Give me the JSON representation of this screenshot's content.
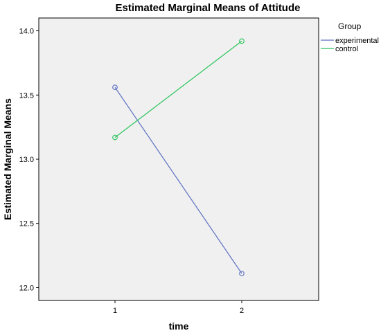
{
  "chart_data": {
    "type": "line",
    "title": "Estimated Marginal Means of Attitude",
    "xlabel": "time",
    "ylabel": "Estimated Marginal Means",
    "categories": [
      "1",
      "2"
    ],
    "ylim": [
      11.9,
      14.1
    ],
    "yticks": [
      "12.0",
      "12.5",
      "13.0",
      "13.5",
      "14.0"
    ],
    "grid": false,
    "legend_position": "right",
    "legend_title": "Group",
    "background_color": "#f0f0f0",
    "series": [
      {
        "name": "experimental",
        "values": [
          13.56,
          12.11
        ],
        "color": "#5b6fc2"
      },
      {
        "name": "control",
        "values": [
          13.17,
          13.92
        ],
        "color": "#28c45a"
      }
    ]
  }
}
